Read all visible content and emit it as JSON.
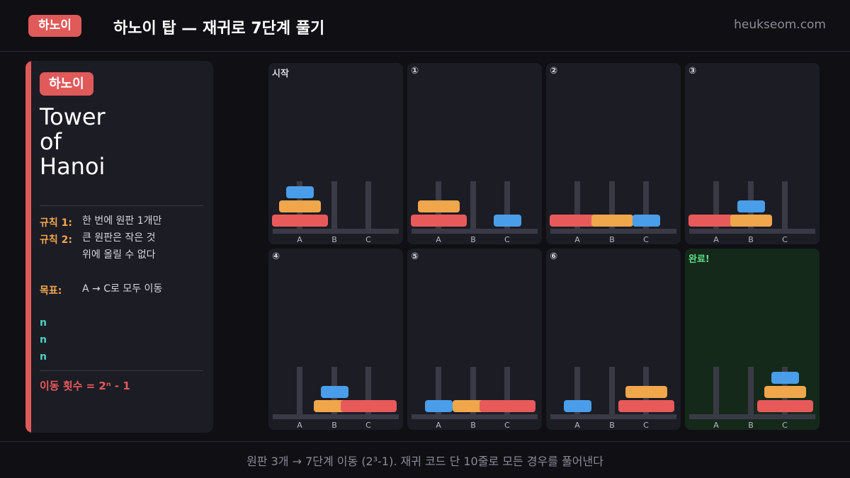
{
  "header": {
    "badge": "하노이",
    "title": "하노이 탑 — 재귀로 7단계 풀기",
    "site": "heukseom.com"
  },
  "sidebar": {
    "badge": "하노이",
    "title": "Tower\nof\nHanoi",
    "rules": [
      {
        "label": "규칙 1:",
        "text": "한 번에 원판 1개만"
      },
      {
        "label": "규칙 2:",
        "text": "큰 원판은 작은 것\n위에 올릴 수 없다"
      },
      {
        "label": "목표:",
        "text": "A → C로 모두 이동"
      }
    ],
    "n_lines": [
      "n",
      "n",
      "n"
    ],
    "formula": "이동 횟수 = 2ⁿ - 1"
  },
  "peg_labels": [
    "A",
    "B",
    "C"
  ],
  "colors": {
    "small": "#4a9de8",
    "medium": "#f0a64b",
    "large": "#e85a5a",
    "done_bg": "#15291a"
  },
  "steps": [
    {
      "label": "시작",
      "pegs": [
        [
          3,
          2,
          1
        ],
        [],
        []
      ]
    },
    {
      "label": "①",
      "pegs": [
        [
          3,
          2
        ],
        [],
        [
          1
        ]
      ]
    },
    {
      "label": "②",
      "pegs": [
        [
          3
        ],
        [
          2
        ],
        [
          1
        ]
      ]
    },
    {
      "label": "③",
      "pegs": [
        [
          3
        ],
        [
          2,
          1
        ],
        []
      ]
    },
    {
      "label": "④",
      "pegs": [
        [],
        [
          2,
          1
        ],
        [
          3
        ]
      ]
    },
    {
      "label": "⑤",
      "pegs": [
        [
          1
        ],
        [
          2
        ],
        [
          3
        ]
      ]
    },
    {
      "label": "⑥",
      "pegs": [
        [
          1
        ],
        [],
        [
          3,
          2
        ]
      ]
    },
    {
      "label": "완료!",
      "pegs": [
        [],
        [],
        [
          3,
          2,
          1
        ]
      ],
      "done": true
    }
  ],
  "footer": "원판 3개 → 7단계 이동 (2³-1). 재귀 코드 단 10줄로 모든 경우를 풀어낸다"
}
